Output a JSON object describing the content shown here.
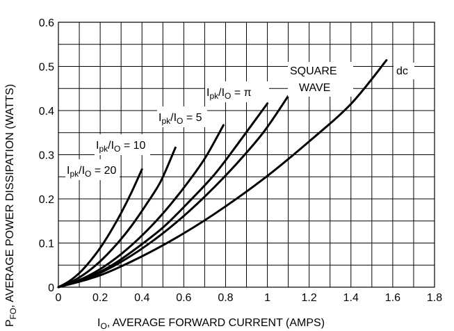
{
  "chart_data": {
    "type": "line",
    "xlabel": {
      "main": "I",
      "sub": "O",
      "rest": ", AVERAGE FORWARD CURRENT (AMPS)"
    },
    "ylabel": {
      "main": "P",
      "sub": "FO",
      "rest": ", AVERAGE POWER DISSIPATION (WATTS)"
    },
    "xlim": [
      0,
      1.8
    ],
    "ylim": [
      0,
      0.6
    ],
    "x_ticks": [
      "0",
      "0.2",
      "0.4",
      "0.6",
      "0.8",
      "1",
      "1.2",
      "1.4",
      "1.6",
      "1.8"
    ],
    "y_ticks": [
      "0",
      "0.1",
      "0.2",
      "0.3",
      "0.4",
      "0.5",
      "0.6"
    ],
    "grid": true,
    "series": [
      {
        "id": "r20",
        "x": [
          0,
          0.05,
          0.1,
          0.15,
          0.2,
          0.25,
          0.3,
          0.35,
          0.4
        ],
        "y": [
          0,
          0.013,
          0.032,
          0.058,
          0.089,
          0.126,
          0.168,
          0.215,
          0.267
        ]
      },
      {
        "id": "r10",
        "x": [
          0,
          0.07,
          0.14,
          0.21,
          0.28,
          0.35,
          0.42,
          0.49,
          0.56
        ],
        "y": [
          0,
          0.014,
          0.035,
          0.063,
          0.098,
          0.139,
          0.187,
          0.24,
          0.316
        ]
      },
      {
        "id": "r5",
        "x": [
          0,
          0.1,
          0.2,
          0.3,
          0.4,
          0.5,
          0.6,
          0.7,
          0.79
        ],
        "y": [
          0,
          0.016,
          0.041,
          0.075,
          0.117,
          0.167,
          0.225,
          0.291,
          0.367
        ]
      },
      {
        "id": "rpi",
        "x": [
          0,
          0.12,
          0.25,
          0.37,
          0.5,
          0.62,
          0.75,
          0.87,
          1.0
        ],
        "y": [
          0,
          0.018,
          0.048,
          0.087,
          0.135,
          0.191,
          0.257,
          0.332,
          0.416
        ]
      },
      {
        "id": "square",
        "x": [
          0,
          0.14,
          0.28,
          0.42,
          0.56,
          0.7,
          0.84,
          0.98,
          1.1
        ],
        "y": [
          0,
          0.02,
          0.052,
          0.094,
          0.145,
          0.205,
          0.273,
          0.35,
          0.433
        ]
      },
      {
        "id": "dc",
        "x": [
          0,
          0.2,
          0.4,
          0.6,
          0.8,
          1.0,
          1.2,
          1.4,
          1.57
        ],
        "y": [
          0,
          0.027,
          0.07,
          0.122,
          0.183,
          0.252,
          0.33,
          0.415,
          0.514
        ]
      }
    ],
    "annotations": [
      {
        "id": "r20",
        "main": "I",
        "sub1": "pk",
        "mid": "/I",
        "sub2": "O",
        "rest": " = 20"
      },
      {
        "id": "r10",
        "main": "I",
        "sub1": "pk",
        "mid": "/I",
        "sub2": "O",
        "rest": " = 10"
      },
      {
        "id": "r5",
        "main": "I",
        "sub1": "pk",
        "mid": "/I",
        "sub2": "O",
        "rest": " = 5"
      },
      {
        "id": "rpi",
        "main": "I",
        "sub1": "pk",
        "mid": "/I",
        "sub2": "O",
        "rest": " = π"
      },
      {
        "id": "square",
        "line1": "SQUARE",
        "line2": "WAVE"
      },
      {
        "id": "dc",
        "text": "dc"
      }
    ]
  }
}
